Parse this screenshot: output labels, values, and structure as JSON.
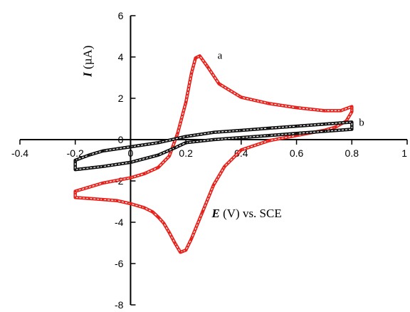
{
  "chart_data": {
    "type": "line",
    "xlabel": "E (V) vs. SCE",
    "xlabel_italic_part": "E",
    "xlabel_rest": " (V) vs. SCE",
    "ylabel": "I (µA)",
    "ylabel_italic_part": "I",
    "ylabel_rest": " (µA)",
    "xlim": [
      -0.4,
      1.0
    ],
    "ylim": [
      -8,
      6
    ],
    "x_ticks": [
      -0.4,
      -0.2,
      0,
      0.2,
      0.4,
      0.6,
      0.8,
      1.0
    ],
    "x_tick_labels": [
      "-0.4",
      "-0.2",
      "0",
      "0.2",
      "0.4",
      "0.6",
      "0.8",
      "1"
    ],
    "y_ticks": [
      -8,
      -6,
      -4,
      -2,
      0,
      2,
      4,
      6
    ],
    "y_tick_labels": [
      "-8",
      "-6",
      "-4",
      "-2",
      "0",
      "2",
      "4",
      "6"
    ],
    "grid": false,
    "series": [
      {
        "name": "a",
        "color": "#e8201a",
        "x": [
          -0.2,
          -0.1,
          0.0,
          0.05,
          0.1,
          0.14,
          0.17,
          0.2,
          0.22,
          0.235,
          0.25,
          0.28,
          0.32,
          0.4,
          0.5,
          0.6,
          0.7,
          0.76,
          0.8,
          0.8,
          0.78,
          0.74,
          0.7,
          0.6,
          0.5,
          0.4,
          0.34,
          0.3,
          0.26,
          0.22,
          0.2,
          0.18,
          0.16,
          0.14,
          0.12,
          0.1,
          0.08,
          0.05,
          0.0,
          -0.05,
          -0.1,
          -0.15,
          -0.2,
          -0.2
        ],
        "y": [
          -2.5,
          -2.1,
          -1.85,
          -1.65,
          -1.35,
          -0.8,
          0.3,
          1.8,
          3.2,
          3.95,
          4.05,
          3.5,
          2.7,
          2.05,
          1.75,
          1.55,
          1.4,
          1.4,
          1.6,
          1.35,
          0.9,
          0.6,
          0.45,
          0.2,
          -0.05,
          -0.5,
          -1.3,
          -2.2,
          -3.5,
          -4.8,
          -5.35,
          -5.45,
          -5.0,
          -4.5,
          -4.05,
          -3.75,
          -3.5,
          -3.3,
          -3.1,
          -2.95,
          -2.9,
          -2.85,
          -2.8,
          -2.5
        ]
      },
      {
        "name": "b",
        "color": "#111111",
        "x": [
          -0.2,
          -0.15,
          -0.1,
          0.0,
          0.1,
          0.2,
          0.3,
          0.4,
          0.5,
          0.6,
          0.7,
          0.8,
          0.8,
          0.7,
          0.6,
          0.5,
          0.4,
          0.3,
          0.2,
          0.16,
          0.1,
          0.0,
          -0.1,
          -0.2
        ],
        "y": [
          -1.0,
          -0.75,
          -0.55,
          -0.35,
          -0.15,
          0.15,
          0.35,
          0.45,
          0.55,
          0.65,
          0.75,
          0.85,
          0.5,
          0.4,
          0.3,
          0.2,
          0.1,
          0.0,
          -0.15,
          -0.4,
          -0.75,
          -1.1,
          -1.3,
          -1.45
        ]
      }
    ]
  }
}
